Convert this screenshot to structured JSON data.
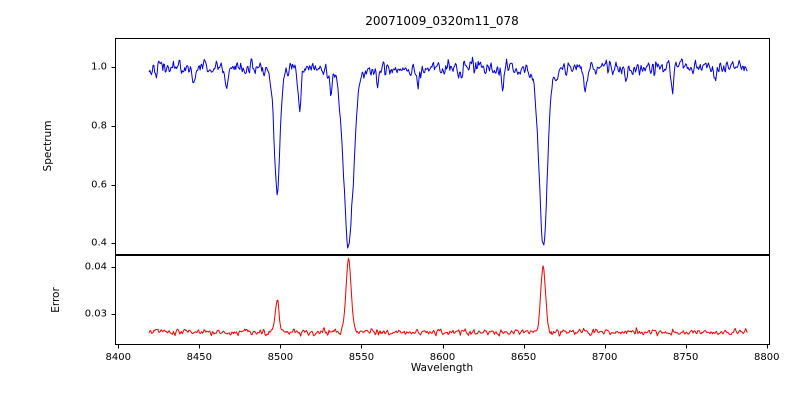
{
  "chart_data": {
    "type": "line",
    "title": "20071009_0320m11_078",
    "xlabel": "Wavelength",
    "grid": false,
    "legend": null,
    "xlim": [
      8398,
      8802
    ],
    "x_range": [
      8419,
      8788
    ],
    "x_step": 0.5,
    "xticks": [
      8400,
      8450,
      8500,
      8550,
      8600,
      8650,
      8700,
      8750,
      8800
    ],
    "seed": 42,
    "panels": [
      {
        "name": "spectrum",
        "ylabel": "Spectrum",
        "ylim": [
          0.36,
          1.1
        ],
        "yticks": [
          0.4,
          0.6,
          0.8,
          1.0
        ],
        "tick_decimals": 1,
        "color": "#0000dd",
        "baseline": 1.0,
        "noise_std": 0.017,
        "absorption_lines": [
          {
            "center": 8498.0,
            "min_value": 0.565,
            "sigma": 1.7
          },
          {
            "center": 8542.1,
            "min_value": 0.4,
            "sigma": 2.9
          },
          {
            "center": 8662.1,
            "min_value": 0.39,
            "sigma": 2.4
          }
        ],
        "minor_lines": [
          {
            "center": 8447,
            "depth": 0.055,
            "sigma": 0.9
          },
          {
            "center": 8467,
            "depth": 0.08,
            "sigma": 0.8
          },
          {
            "center": 8512,
            "depth": 0.13,
            "sigma": 0.9
          },
          {
            "center": 8531,
            "depth": 0.06,
            "sigma": 0.8
          },
          {
            "center": 8560,
            "depth": 0.05,
            "sigma": 0.7
          },
          {
            "center": 8585,
            "depth": 0.06,
            "sigma": 0.8
          },
          {
            "center": 8610,
            "depth": 0.05,
            "sigma": 0.7
          },
          {
            "center": 8637,
            "depth": 0.06,
            "sigma": 0.8
          },
          {
            "center": 8688,
            "depth": 0.09,
            "sigma": 0.8
          },
          {
            "center": 8713,
            "depth": 0.06,
            "sigma": 0.7
          },
          {
            "center": 8742,
            "depth": 0.08,
            "sigma": 0.8
          },
          {
            "center": 8768,
            "depth": 0.06,
            "sigma": 0.7
          }
        ]
      },
      {
        "name": "error",
        "ylabel": "Error",
        "ylim": [
          0.0235,
          0.0425
        ],
        "yticks": [
          0.03,
          0.04
        ],
        "tick_decimals": 2,
        "color": "#ee0000",
        "baseline": 0.0262,
        "noise_std": 0.00045,
        "peaks": [
          {
            "center": 8498.0,
            "max_value": 0.033,
            "sigma": 1.2
          },
          {
            "center": 8542.1,
            "max_value": 0.0415,
            "sigma": 1.6
          },
          {
            "center": 8662.1,
            "max_value": 0.04,
            "sigma": 1.5
          }
        ]
      }
    ]
  }
}
